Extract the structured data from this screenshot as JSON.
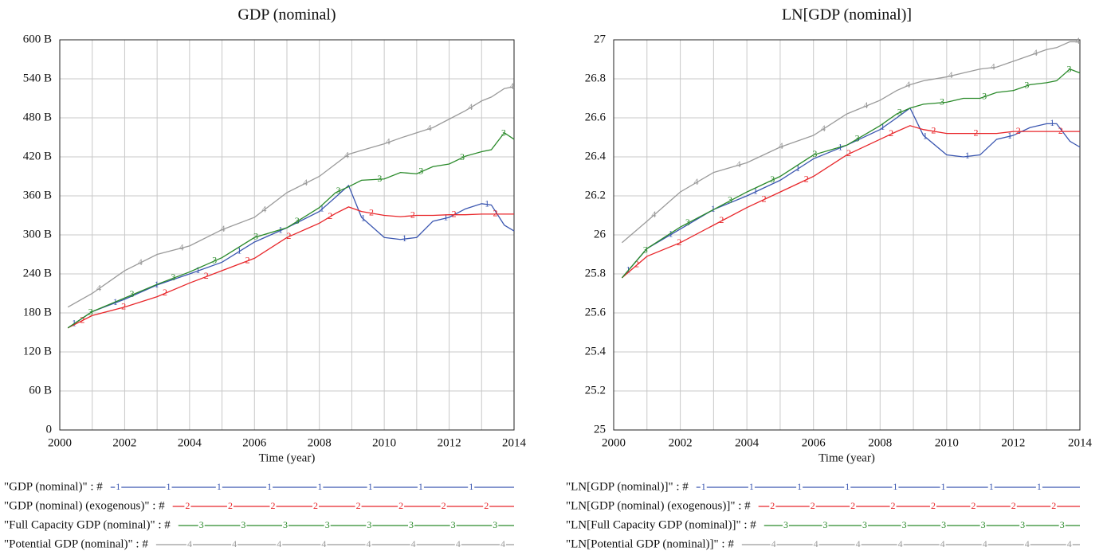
{
  "chart_data": [
    {
      "type": "line",
      "title": "GDP (nominal)",
      "x_label": "Time (year)",
      "xlim": [
        2000,
        2014
      ],
      "xticks": [
        2000,
        2002,
        2004,
        2006,
        2008,
        2010,
        2012,
        2014
      ],
      "xgrid": [
        2000,
        2001,
        2002,
        2003,
        2004,
        2005,
        2006,
        2007,
        2008,
        2009,
        2010,
        2011,
        2012,
        2013,
        2014
      ],
      "ylim": [
        0,
        600
      ],
      "yticks": [
        0,
        {
          "value": 60,
          "label": "60 B"
        },
        {
          "value": 120,
          "label": "120 B"
        },
        {
          "value": 180,
          "label": "180 B"
        },
        {
          "value": 240,
          "label": "240 B"
        },
        {
          "value": 300,
          "label": "300 B"
        },
        {
          "value": 360,
          "label": "360 B"
        },
        {
          "value": 420,
          "label": "420 B"
        },
        {
          "value": 480,
          "label": "480 B"
        },
        {
          "value": 540,
          "label": "540 B"
        },
        {
          "value": 600,
          "label": "600 B"
        }
      ],
      "grid": true,
      "x": [
        2000.25,
        2001,
        2002,
        2003,
        2004,
        2005,
        2006,
        2007,
        2008,
        2008.5,
        2008.9,
        2009.3,
        2010,
        2010.5,
        2011,
        2011.5,
        2012,
        2012.5,
        2013,
        2013.3,
        2013.7,
        2014
      ],
      "series": [
        {
          "name": "\"GDP (nominal)\" : #",
          "marker": "1",
          "color": "#3a56b0",
          "values": [
            157,
            182,
            201,
            223,
            240,
            258,
            289,
            311,
            336,
            358,
            376,
            327,
            296,
            293,
            296,
            321,
            327,
            340,
            348,
            346,
            315,
            306
          ]
        },
        {
          "name": "\"GDP (nominal) (exogenous)\" : #",
          "marker": "2",
          "color": "#e8262a",
          "values": [
            157,
            176,
            189,
            205,
            226,
            245,
            264,
            296,
            318,
            333,
            343,
            336,
            330,
            328,
            330,
            330,
            331,
            331,
            332,
            332,
            332,
            332
          ]
        },
        {
          "name": "\"Full Capacity GDP (nominal)\" : #",
          "marker": "3",
          "color": "#2a8a2a",
          "values": [
            157,
            182,
            203,
            224,
            243,
            265,
            296,
            311,
            342,
            365,
            374,
            384,
            386,
            396,
            394,
            405,
            409,
            421,
            428,
            431,
            457,
            447
          ]
        },
        {
          "name": "\"Potential GDP (nominal)\" : #",
          "marker": "4",
          "color": "#9a9a9a",
          "values": [
            189,
            210,
            245,
            270,
            283,
            308,
            327,
            365,
            390,
            409,
            424,
            430,
            440,
            449,
            457,
            465,
            478,
            491,
            506,
            512,
            525,
            528
          ]
        }
      ]
    },
    {
      "type": "line",
      "title": "LN[GDP (nominal)]",
      "x_label": "Time (year)",
      "xlim": [
        2000,
        2014
      ],
      "xticks": [
        2000,
        2002,
        2004,
        2006,
        2008,
        2010,
        2012,
        2014
      ],
      "xgrid": [
        2000,
        2001,
        2002,
        2003,
        2004,
        2005,
        2006,
        2007,
        2008,
        2009,
        2010,
        2011,
        2012,
        2013,
        2014
      ],
      "ylim": [
        25,
        27
      ],
      "yticks": [
        25,
        25.2,
        25.4,
        25.6,
        25.8,
        26,
        26.2,
        26.4,
        26.6,
        26.8,
        27
      ],
      "grid": true,
      "x": [
        2000.25,
        2001,
        2002,
        2003,
        2004,
        2005,
        2006,
        2007,
        2008,
        2008.5,
        2008.9,
        2009.3,
        2010,
        2010.5,
        2011,
        2011.5,
        2012,
        2012.5,
        2013,
        2013.3,
        2013.7,
        2014
      ],
      "series": [
        {
          "name": "\"LN[GDP (nominal)]\" : #",
          "marker": "1",
          "color": "#3a56b0",
          "values": [
            25.78,
            25.93,
            26.03,
            26.13,
            26.2,
            26.28,
            26.39,
            26.46,
            26.54,
            26.6,
            26.65,
            26.51,
            26.41,
            26.4,
            26.41,
            26.49,
            26.51,
            26.55,
            26.57,
            26.57,
            26.48,
            26.45
          ]
        },
        {
          "name": "\"LN[GDP (nominal) (exogenous)]\" : #",
          "marker": "2",
          "color": "#e8262a",
          "values": [
            25.78,
            25.89,
            25.96,
            26.05,
            26.14,
            26.22,
            26.3,
            26.41,
            26.49,
            26.53,
            26.56,
            26.54,
            26.52,
            26.52,
            26.52,
            26.52,
            26.53,
            26.53,
            26.53,
            26.53,
            26.53,
            26.53
          ]
        },
        {
          "name": "\"LN[Full Capacity GDP (nominal)]\" : #",
          "marker": "3",
          "color": "#2a8a2a",
          "values": [
            25.78,
            25.93,
            26.04,
            26.13,
            26.22,
            26.3,
            26.41,
            26.46,
            26.56,
            26.62,
            26.65,
            26.67,
            26.68,
            26.7,
            26.7,
            26.73,
            26.74,
            26.77,
            26.78,
            26.79,
            26.85,
            26.83
          ]
        },
        {
          "name": "\"LN[Potential GDP (nominal)]\" : #",
          "marker": "4",
          "color": "#9a9a9a",
          "values": [
            25.96,
            26.07,
            26.22,
            26.32,
            26.37,
            26.45,
            26.51,
            26.62,
            26.69,
            26.74,
            26.77,
            26.79,
            26.81,
            26.83,
            26.85,
            26.86,
            26.89,
            26.92,
            26.95,
            26.96,
            26.99,
            26.99
          ]
        }
      ]
    }
  ]
}
